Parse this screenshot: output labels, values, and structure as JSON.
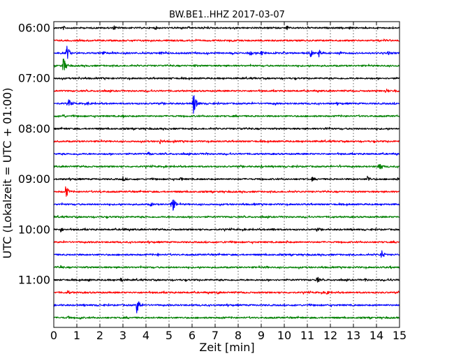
{
  "chart_data": {
    "type": "line",
    "title": "BW.BE1..HHZ 2017-03-07",
    "xlabel": "Zeit  [min]",
    "ylabel": "UTC (Lokalzeit = UTC + 01:00)",
    "xlim": [
      0,
      15
    ],
    "x_ticks": [
      "0",
      "1",
      "2",
      "3",
      "4",
      "5",
      "6",
      "7",
      "8",
      "9",
      "10",
      "11",
      "12",
      "13",
      "14",
      "15"
    ],
    "y_ticks": [
      "06:00",
      "07:00",
      "08:00",
      "09:00",
      "10:00",
      "11:00"
    ],
    "x_grid": "dotted",
    "trace_interval_min": 15,
    "trace_colors": [
      "#000000",
      "#ff0000",
      "#0000ff",
      "#008000"
    ],
    "traces": [
      {
        "start": "06:00",
        "color": "#000000",
        "events": [
          {
            "t": 0.4,
            "amp": 0.25
          },
          {
            "t": 2.6,
            "amp": 0.3
          },
          {
            "t": 4.4,
            "amp": 0.25
          },
          {
            "t": 10.1,
            "amp": 0.3
          },
          {
            "t": 12.8,
            "amp": 0.2
          }
        ]
      },
      {
        "start": "06:15",
        "color": "#ff0000",
        "events": []
      },
      {
        "start": "06:30",
        "color": "#0000ff",
        "events": [
          {
            "t": 0.55,
            "amp": 0.9
          },
          {
            "t": 2.1,
            "amp": 0.4
          },
          {
            "t": 4.6,
            "amp": 0.3
          },
          {
            "t": 8.5,
            "amp": 0.35
          },
          {
            "t": 9.0,
            "amp": 0.3
          },
          {
            "t": 11.1,
            "amp": 0.6
          },
          {
            "t": 11.5,
            "amp": 0.45
          },
          {
            "t": 12.4,
            "amp": 0.3
          },
          {
            "t": 14.5,
            "amp": 0.25
          }
        ]
      },
      {
        "start": "06:45",
        "color": "#008000",
        "events": [
          {
            "t": 0.4,
            "amp": 1.0
          },
          {
            "t": 6.1,
            "amp": 0.2
          }
        ]
      },
      {
        "start": "07:00",
        "color": "#000000",
        "events": [
          {
            "t": 1.1,
            "amp": 0.2
          },
          {
            "t": 5.1,
            "amp": 0.15
          }
        ]
      },
      {
        "start": "07:15",
        "color": "#ff0000",
        "events": [
          {
            "t": 14.4,
            "amp": 0.35
          },
          {
            "t": 14.8,
            "amp": 0.25
          }
        ]
      },
      {
        "start": "07:30",
        "color": "#0000ff",
        "events": [
          {
            "t": 0.65,
            "amp": 0.5
          },
          {
            "t": 1.5,
            "amp": 0.25
          },
          {
            "t": 6.05,
            "amp": 1.4
          },
          {
            "t": 9.6,
            "amp": 0.2
          },
          {
            "t": 12.3,
            "amp": 0.2
          }
        ]
      },
      {
        "start": "07:45",
        "color": "#008000",
        "events": [
          {
            "t": 0.4,
            "amp": 0.3
          },
          {
            "t": 3.0,
            "amp": 0.2
          }
        ]
      },
      {
        "start": "08:00",
        "color": "#000000",
        "events": [
          {
            "t": 8.1,
            "amp": 0.2
          },
          {
            "t": 11.8,
            "amp": 0.25
          }
        ]
      },
      {
        "start": "08:15",
        "color": "#ff0000",
        "events": [
          {
            "t": 4.6,
            "amp": 0.3
          },
          {
            "t": 5.2,
            "amp": 0.2
          }
        ]
      },
      {
        "start": "08:30",
        "color": "#0000ff",
        "events": [
          {
            "t": 1.0,
            "amp": 0.2
          },
          {
            "t": 4.1,
            "amp": 0.3
          },
          {
            "t": 6.6,
            "amp": 0.2
          }
        ]
      },
      {
        "start": "08:45",
        "color": "#008000",
        "events": [
          {
            "t": 9.0,
            "amp": 0.2
          },
          {
            "t": 12.4,
            "amp": 0.2
          },
          {
            "t": 14.1,
            "amp": 0.7
          }
        ]
      },
      {
        "start": "09:00",
        "color": "#000000",
        "events": [
          {
            "t": 3.0,
            "amp": 0.3
          },
          {
            "t": 5.5,
            "amp": 0.25
          },
          {
            "t": 11.2,
            "amp": 0.25
          },
          {
            "t": 13.6,
            "amp": 0.45
          },
          {
            "t": 14.9,
            "amp": 0.2
          }
        ]
      },
      {
        "start": "09:15",
        "color": "#ff0000",
        "events": [
          {
            "t": 0.5,
            "amp": 0.8
          },
          {
            "t": 2.0,
            "amp": 0.2
          }
        ]
      },
      {
        "start": "09:30",
        "color": "#0000ff",
        "events": [
          {
            "t": 4.2,
            "amp": 0.3
          },
          {
            "t": 5.1,
            "amp": 1.2
          },
          {
            "t": 8.7,
            "amp": 0.15
          }
        ]
      },
      {
        "start": "09:45",
        "color": "#008000",
        "events": [
          {
            "t": 12.1,
            "amp": 0.15
          }
        ]
      },
      {
        "start": "10:00",
        "color": "#000000",
        "events": [
          {
            "t": 0.3,
            "amp": 0.3
          },
          {
            "t": 3.0,
            "amp": 0.25
          },
          {
            "t": 9.5,
            "amp": 0.3
          },
          {
            "t": 11.4,
            "amp": 0.3
          }
        ]
      },
      {
        "start": "10:15",
        "color": "#ff0000",
        "events": [
          {
            "t": 1.8,
            "amp": 0.15
          },
          {
            "t": 7.4,
            "amp": 0.2
          },
          {
            "t": 10.1,
            "amp": 0.2
          }
        ]
      },
      {
        "start": "10:30",
        "color": "#0000ff",
        "events": [
          {
            "t": 4.5,
            "amp": 0.2
          },
          {
            "t": 9.8,
            "amp": 0.15
          },
          {
            "t": 14.2,
            "amp": 0.6
          }
        ]
      },
      {
        "start": "10:45",
        "color": "#008000",
        "events": [
          {
            "t": 0.3,
            "amp": 0.25
          },
          {
            "t": 9.2,
            "amp": 0.2
          },
          {
            "t": 14.6,
            "amp": 0.2
          }
        ]
      },
      {
        "start": "11:00",
        "color": "#000000",
        "events": [
          {
            "t": 1.5,
            "amp": 0.2
          },
          {
            "t": 2.9,
            "amp": 0.35
          },
          {
            "t": 11.4,
            "amp": 0.45
          },
          {
            "t": 13.5,
            "amp": 0.25
          },
          {
            "t": 14.6,
            "amp": 0.2
          }
        ]
      },
      {
        "start": "11:15",
        "color": "#ff0000",
        "events": [
          {
            "t": 0.6,
            "amp": 0.3
          },
          {
            "t": 7.1,
            "amp": 0.2
          },
          {
            "t": 11.8,
            "amp": 0.35
          }
        ]
      },
      {
        "start": "11:30",
        "color": "#0000ff",
        "events": [
          {
            "t": 1.3,
            "amp": 0.15
          },
          {
            "t": 3.6,
            "amp": 0.9
          }
        ]
      },
      {
        "start": "11:45",
        "color": "#008000",
        "events": [
          {
            "t": 0.6,
            "amp": 0.25
          },
          {
            "t": 1.1,
            "amp": 0.25
          },
          {
            "t": 7.3,
            "amp": 0.2
          }
        ]
      }
    ]
  }
}
